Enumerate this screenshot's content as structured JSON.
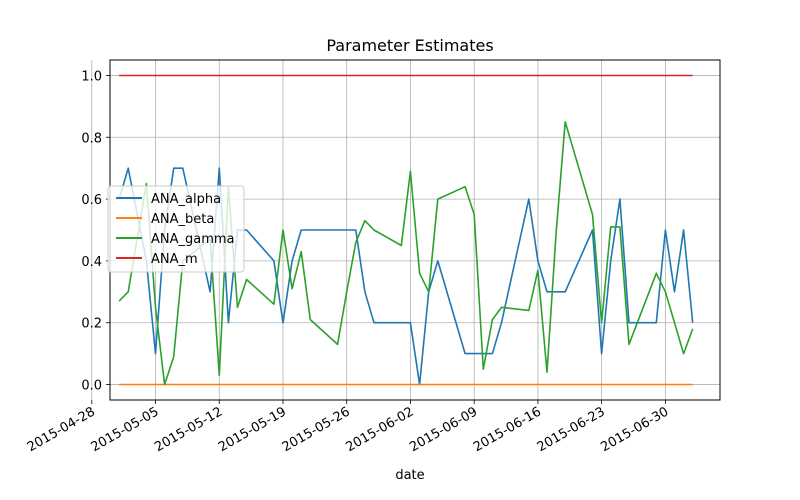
{
  "chart_data": {
    "type": "line",
    "title": "Parameter Estimates",
    "xlabel": "date",
    "ylabel": "",
    "xlim": [
      "2015-04-30",
      "2015-07-06"
    ],
    "ylim": [
      -0.05,
      1.05
    ],
    "grid": true,
    "legend_position": "center-left",
    "x_ticks": [
      "2015-04-28",
      "2015-05-05",
      "2015-05-12",
      "2015-05-19",
      "2015-05-26",
      "2015-06-02",
      "2015-06-09",
      "2015-06-16",
      "2015-06-23",
      "2015-06-30"
    ],
    "y_ticks": [
      "0.0",
      "0.2",
      "0.4",
      "0.6",
      "0.8",
      "1.0"
    ],
    "series": [
      {
        "name": "ANA_alpha",
        "color": "#1f77b4",
        "x": [
          "2015-05-01",
          "2015-05-02",
          "2015-05-04",
          "2015-05-05",
          "2015-05-06",
          "2015-05-07",
          "2015-05-08",
          "2015-05-11",
          "2015-05-12",
          "2015-05-13",
          "2015-05-14",
          "2015-05-15",
          "2015-05-18",
          "2015-05-19",
          "2015-05-20",
          "2015-05-21",
          "2015-05-22",
          "2015-05-25",
          "2015-05-26",
          "2015-05-27",
          "2015-05-28",
          "2015-05-29",
          "2015-06-01",
          "2015-06-02",
          "2015-06-03",
          "2015-06-04",
          "2015-06-05",
          "2015-06-08",
          "2015-06-09",
          "2015-06-10",
          "2015-06-11",
          "2015-06-12",
          "2015-06-15",
          "2015-06-16",
          "2015-06-17",
          "2015-06-18",
          "2015-06-19",
          "2015-06-22",
          "2015-06-23",
          "2015-06-24",
          "2015-06-25",
          "2015-06-26",
          "2015-06-29",
          "2015-06-30",
          "2015-07-01",
          "2015-07-02",
          "2015-07-03"
        ],
        "values": [
          0.6,
          0.7,
          0.4,
          0.1,
          0.5,
          0.7,
          0.7,
          0.3,
          0.7,
          0.2,
          0.5,
          0.5,
          0.4,
          0.2,
          0.4,
          0.5,
          0.5,
          0.5,
          0.5,
          0.5,
          0.3,
          0.2,
          0.2,
          0.2,
          0.0,
          0.3,
          0.4,
          0.1,
          0.1,
          0.1,
          0.1,
          0.2,
          0.6,
          0.4,
          0.3,
          0.3,
          0.3,
          0.5,
          0.1,
          0.4,
          0.6,
          0.2,
          0.2,
          0.5,
          0.3,
          0.5,
          0.2
        ]
      },
      {
        "name": "ANA_beta",
        "color": "#ff7f0e",
        "x": [
          "2015-05-01",
          "2015-07-03"
        ],
        "values": [
          0.0,
          0.0
        ]
      },
      {
        "name": "ANA_gamma",
        "color": "#2ca02c",
        "x": [
          "2015-05-01",
          "2015-05-02",
          "2015-05-04",
          "2015-05-05",
          "2015-05-06",
          "2015-05-07",
          "2015-05-08",
          "2015-05-11",
          "2015-05-12",
          "2015-05-13",
          "2015-05-14",
          "2015-05-15",
          "2015-05-18",
          "2015-05-19",
          "2015-05-20",
          "2015-05-21",
          "2015-05-22",
          "2015-05-25",
          "2015-05-26",
          "2015-05-27",
          "2015-05-28",
          "2015-05-29",
          "2015-06-01",
          "2015-06-02",
          "2015-06-03",
          "2015-06-04",
          "2015-06-05",
          "2015-06-08",
          "2015-06-09",
          "2015-06-10",
          "2015-06-11",
          "2015-06-12",
          "2015-06-15",
          "2015-06-16",
          "2015-06-17",
          "2015-06-18",
          "2015-06-19",
          "2015-06-22",
          "2015-06-23",
          "2015-06-24",
          "2015-06-25",
          "2015-06-26",
          "2015-06-29",
          "2015-06-30",
          "2015-07-01",
          "2015-07-02",
          "2015-07-03"
        ],
        "values": [
          0.27,
          0.3,
          0.65,
          0.25,
          0.0,
          0.09,
          0.4,
          0.47,
          0.03,
          0.64,
          0.25,
          0.34,
          0.26,
          0.5,
          0.31,
          0.43,
          0.21,
          0.13,
          0.3,
          0.46,
          0.53,
          0.5,
          0.45,
          0.69,
          0.36,
          0.3,
          0.6,
          0.64,
          0.55,
          0.05,
          0.21,
          0.25,
          0.24,
          0.37,
          0.04,
          0.49,
          0.85,
          0.55,
          0.2,
          0.51,
          0.51,
          0.13,
          0.36,
          0.3,
          0.2,
          0.1,
          0.18
        ]
      },
      {
        "name": "ANA_m",
        "color": "#d62728",
        "x": [
          "2015-05-01",
          "2015-07-03"
        ],
        "values": [
          1.0,
          1.0
        ]
      }
    ]
  }
}
